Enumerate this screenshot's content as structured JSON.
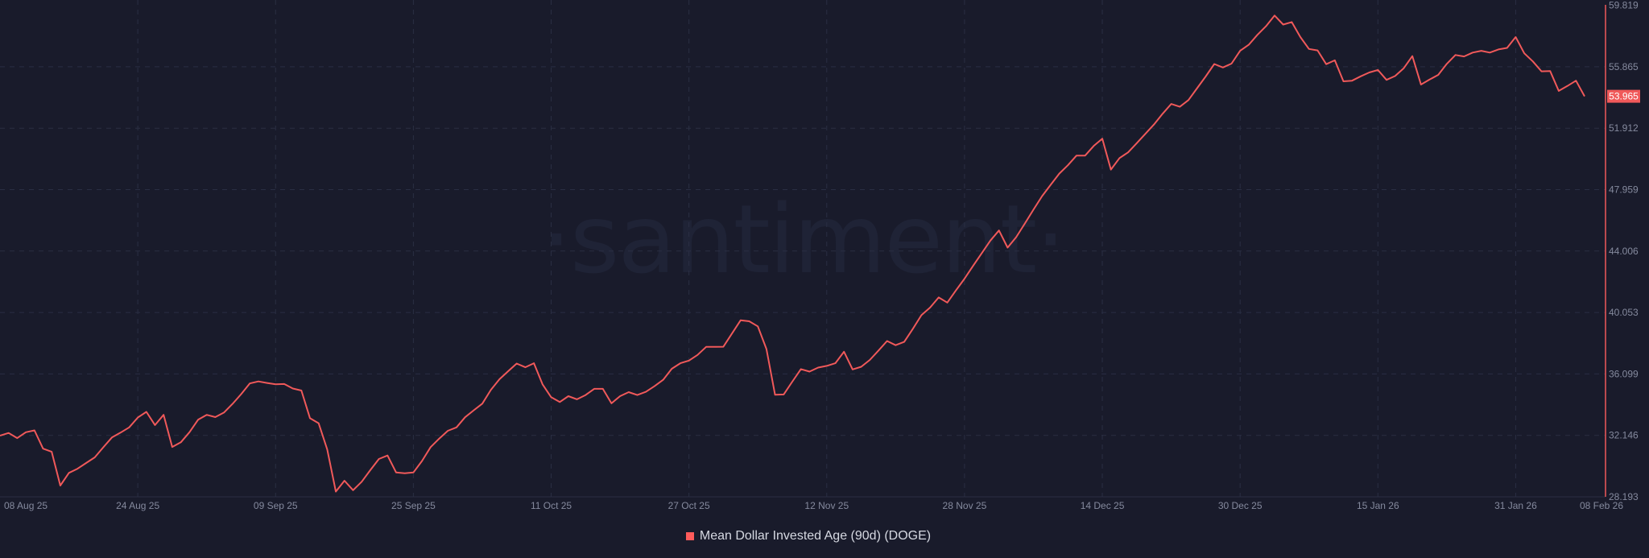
{
  "watermark": "·santiment·",
  "legend": {
    "label": "Mean Dollar Invested Age (90d) (DOGE)",
    "color": "#ff5b5b"
  },
  "colors": {
    "background": "#191b2b",
    "line": "#f0595a",
    "grid": "#2a2e43",
    "axis_text": "#858a9e"
  },
  "chart_data": {
    "type": "line",
    "title": "",
    "xlabel": "",
    "ylabel": "",
    "grid": true,
    "legend_position": "bottom-center",
    "x_start": "08 Aug 25",
    "x_end": "08 Feb 26",
    "x_interval": "daily",
    "ylim": [
      28.193,
      59.819
    ],
    "y_ticks": [
      "59.819",
      "55.865",
      "51.912",
      "47.959",
      "44.006",
      "40.053",
      "36.099",
      "32.146",
      "28.193"
    ],
    "x_ticks": [
      {
        "label": "08 Aug 25",
        "day": 0
      },
      {
        "label": "24 Aug 25",
        "day": 16
      },
      {
        "label": "09 Sep 25",
        "day": 32
      },
      {
        "label": "25 Sep 25",
        "day": 48
      },
      {
        "label": "11 Oct 25",
        "day": 64
      },
      {
        "label": "27 Oct 25",
        "day": 80
      },
      {
        "label": "12 Nov 25",
        "day": 96
      },
      {
        "label": "28 Nov 25",
        "day": 112
      },
      {
        "label": "14 Dec 25",
        "day": 128
      },
      {
        "label": "30 Dec 25",
        "day": 144
      },
      {
        "label": "15 Jan 26",
        "day": 160
      },
      {
        "label": "31 Jan 26",
        "day": 176
      },
      {
        "label": "08 Feb 26",
        "day": 184
      }
    ],
    "last_value": "53.965",
    "series": [
      {
        "name": "Mean Dollar Invested Age (90d) (DOGE)",
        "values": [
          32.13,
          32.3,
          31.97,
          32.35,
          32.47,
          31.29,
          31.09,
          28.92,
          29.73,
          30.0,
          30.37,
          30.73,
          31.38,
          32.01,
          32.32,
          32.66,
          33.29,
          33.66,
          32.81,
          33.47,
          31.4,
          31.7,
          32.35,
          33.15,
          33.47,
          33.32,
          33.61,
          34.17,
          34.8,
          35.49,
          35.62,
          35.52,
          35.43,
          35.45,
          35.16,
          35.03,
          33.25,
          32.93,
          31.24,
          28.53,
          29.23,
          28.62,
          29.16,
          29.91,
          30.63,
          30.85,
          29.76,
          29.71,
          29.76,
          30.5,
          31.39,
          31.94,
          32.44,
          32.66,
          33.31,
          33.76,
          34.19,
          35.08,
          35.76,
          36.27,
          36.77,
          36.53,
          36.79,
          35.43,
          34.6,
          34.29,
          34.67,
          34.47,
          34.74,
          35.14,
          35.14,
          34.21,
          34.67,
          34.93,
          34.74,
          34.95,
          35.31,
          35.72,
          36.43,
          36.79,
          36.96,
          37.32,
          37.84,
          37.84,
          37.85,
          38.7,
          39.55,
          39.49,
          39.16,
          37.7,
          34.76,
          34.78,
          35.6,
          36.41,
          36.25,
          36.51,
          36.62,
          36.79,
          37.53,
          36.39,
          36.56,
          37.0,
          37.6,
          38.22,
          37.95,
          38.16,
          39.0,
          39.88,
          40.37,
          41.02,
          40.69,
          41.47,
          42.23,
          43.06,
          43.87,
          44.68,
          45.33,
          44.23,
          44.9,
          45.78,
          46.67,
          47.54,
          48.27,
          48.99,
          49.53,
          50.15,
          50.15,
          50.77,
          51.24,
          49.25,
          49.99,
          50.36,
          50.95,
          51.55,
          52.15,
          52.84,
          53.47,
          53.29,
          53.72,
          54.48,
          55.24,
          56.04,
          55.82,
          56.07,
          56.89,
          57.28,
          57.92,
          58.47,
          59.16,
          58.58,
          58.74,
          57.78,
          57.01,
          56.92,
          56.03,
          56.28,
          54.93,
          54.97,
          55.25,
          55.5,
          55.66,
          55.02,
          55.27,
          55.77,
          56.55,
          54.72,
          55.04,
          55.34,
          56.05,
          56.62,
          56.53,
          56.78,
          56.89,
          56.78,
          56.98,
          57.08,
          57.78,
          56.73,
          56.21,
          55.57,
          55.59,
          54.31,
          54.63,
          54.97,
          53.965
        ]
      }
    ]
  }
}
